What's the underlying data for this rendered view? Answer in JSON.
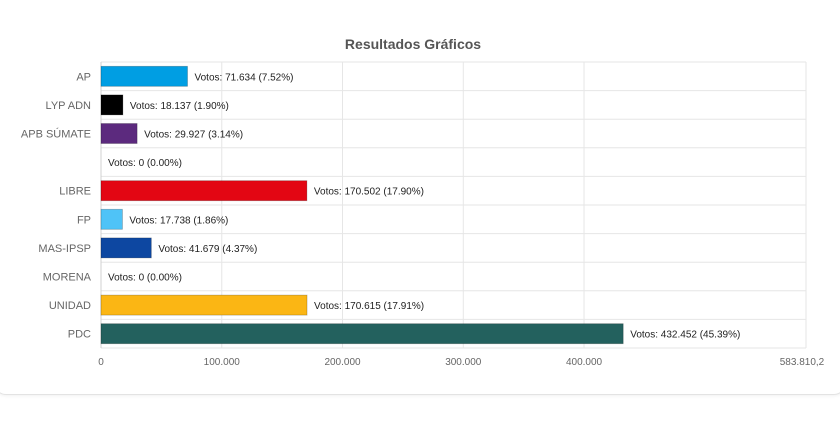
{
  "chart_data": {
    "type": "bar",
    "orientation": "horizontal",
    "title": "Resultados Gráficos",
    "xlabel": "",
    "ylabel": "",
    "xlim": [
      0,
      583810.2
    ],
    "grid": true,
    "legend": "none",
    "categories": [
      "AP",
      "LYP ADN",
      "APB SÚMATE",
      "",
      "LIBRE",
      "FP",
      "MAS-IPSP",
      "MORENA",
      "UNIDAD",
      "PDC"
    ],
    "values": [
      71634,
      18137,
      29927,
      0,
      170502,
      17738,
      41679,
      0,
      170615,
      432452
    ],
    "data_labels": [
      "Votos: 71.634 (7.52%)",
      "Votos: 18.137 (1.90%)",
      "Votos: 29.927 (3.14%)",
      "Votos: 0 (0.00%)",
      "Votos: 170.502 (17.90%)",
      "Votos: 17.738 (1.86%)",
      "Votos: 41.679 (4.37%)",
      "Votos: 0 (0.00%)",
      "Votos: 170.615 (17.91%)",
      "Votos: 432.452 (45.39%)"
    ],
    "colors": [
      "#009ee3",
      "#000000",
      "#5c2a7e",
      "#cccccc",
      "#e30613",
      "#4fc3f7",
      "#0d47a1",
      "#8b1a1a",
      "#fbb614",
      "#23615e"
    ],
    "x_ticks": [
      {
        "value": 0,
        "label": "0"
      },
      {
        "value": 100000,
        "label": "100.000"
      },
      {
        "value": 200000,
        "label": "200.000"
      },
      {
        "value": 300000,
        "label": "300.000"
      },
      {
        "value": 400000,
        "label": "400.000"
      },
      {
        "value": 583810.2,
        "label": "583.810,2"
      }
    ]
  }
}
